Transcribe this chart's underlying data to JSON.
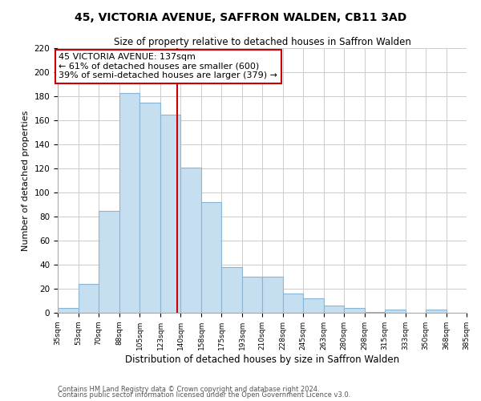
{
  "title": "45, VICTORIA AVENUE, SAFFRON WALDEN, CB11 3AD",
  "subtitle": "Size of property relative to detached houses in Saffron Walden",
  "xlabel": "Distribution of detached houses by size in Saffron Walden",
  "ylabel": "Number of detached properties",
  "bins": [
    35,
    53,
    70,
    88,
    105,
    123,
    140,
    158,
    175,
    193,
    210,
    228,
    245,
    263,
    280,
    298,
    315,
    333,
    350,
    368,
    385
  ],
  "bin_labels": [
    "35sqm",
    "53sqm",
    "70sqm",
    "88sqm",
    "105sqm",
    "123sqm",
    "140sqm",
    "158sqm",
    "175sqm",
    "193sqm",
    "210sqm",
    "228sqm",
    "245sqm",
    "263sqm",
    "280sqm",
    "298sqm",
    "315sqm",
    "333sqm",
    "350sqm",
    "368sqm",
    "385sqm"
  ],
  "counts": [
    4,
    24,
    85,
    183,
    175,
    165,
    121,
    92,
    38,
    30,
    30,
    16,
    12,
    6,
    4,
    1,
    3,
    0,
    3,
    0
  ],
  "bar_color": "#c6dff0",
  "bar_edge_color": "#8ab4d4",
  "property_line_x": 137,
  "property_line_color": "#cc0000",
  "ylim": [
    0,
    220
  ],
  "yticks": [
    0,
    20,
    40,
    60,
    80,
    100,
    120,
    140,
    160,
    180,
    200,
    220
  ],
  "annotation_title": "45 VICTORIA AVENUE: 137sqm",
  "annotation_line1": "← 61% of detached houses are smaller (600)",
  "annotation_line2": "39% of semi-detached houses are larger (379) →",
  "annotation_box_color": "#ffffff",
  "annotation_box_edge": "#cc0000",
  "footer1": "Contains HM Land Registry data © Crown copyright and database right 2024.",
  "footer2": "Contains public sector information licensed under the Open Government Licence v3.0.",
  "background_color": "#ffffff",
  "grid_color": "#cccccc"
}
